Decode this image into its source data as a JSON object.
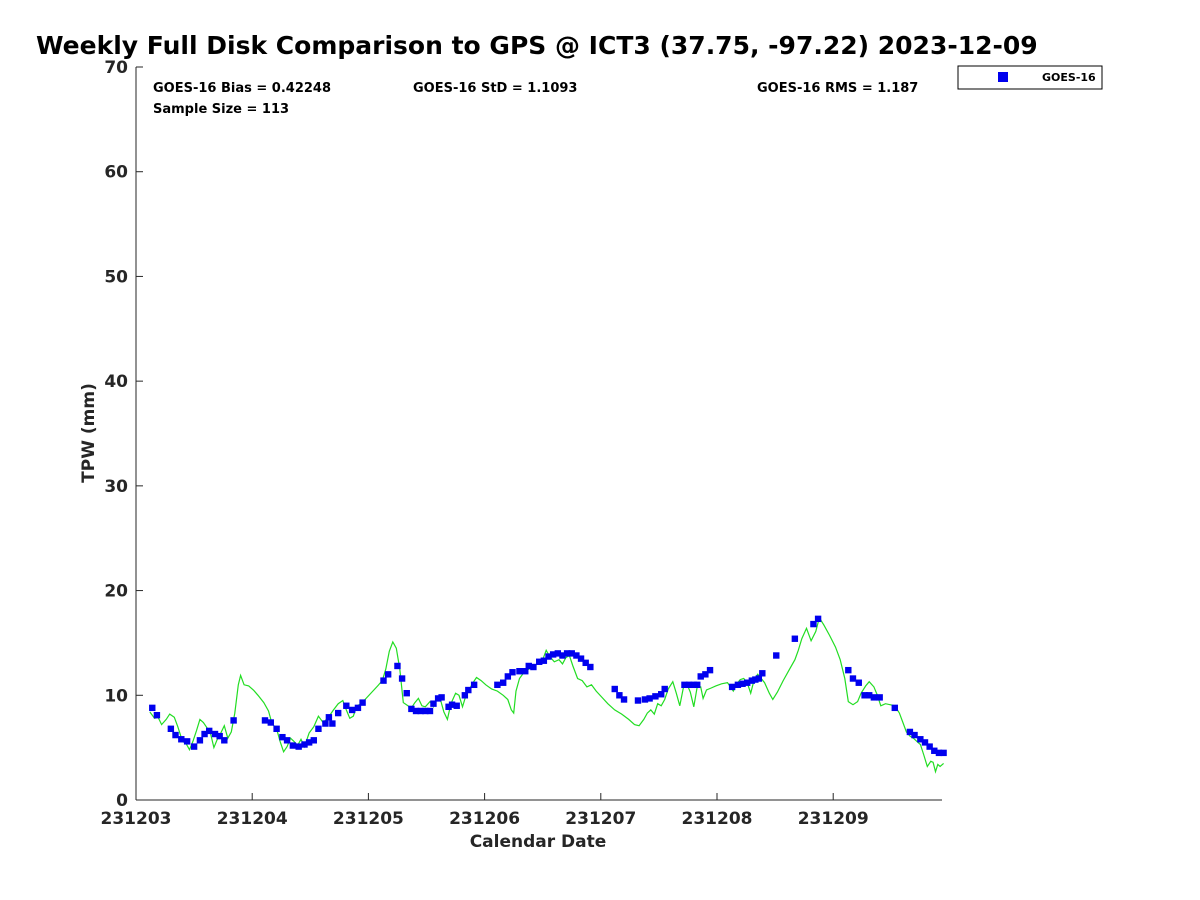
{
  "chart_data": {
    "type": "scatter",
    "title": "Weekly Full Disk Comparison to GPS @ ICT3 (37.75, -97.22) 2023-12-09",
    "xlabel": "Calendar Date",
    "ylabel": "TPW (mm)",
    "x_ticks": [
      "231203",
      "231204",
      "231205",
      "231206",
      "231207",
      "231208",
      "231209"
    ],
    "xlim": [
      0,
      6.95
    ],
    "ylim": [
      0,
      70
    ],
    "y_ticks": [
      0,
      10,
      20,
      30,
      40,
      50,
      60,
      70
    ],
    "grid": false,
    "legend_position": "top-right outside",
    "stats": {
      "bias": "GOES-16 Bias = 0.42248",
      "std": "GOES-16 StD = 1.1093",
      "rms": "GOES-16 RMS = 1.187",
      "sample": "Sample Size = 113"
    },
    "series": [
      {
        "name": "GOES-16",
        "kind": "markers",
        "color": "#0000ee",
        "points": [
          [
            0.14,
            8.8
          ],
          [
            0.18,
            8.1
          ],
          [
            0.3,
            6.8
          ],
          [
            0.34,
            6.2
          ],
          [
            0.39,
            5.8
          ],
          [
            0.44,
            5.6
          ],
          [
            0.5,
            5.1
          ],
          [
            0.55,
            5.7
          ],
          [
            0.59,
            6.3
          ],
          [
            0.63,
            6.6
          ],
          [
            0.68,
            6.3
          ],
          [
            0.72,
            6.1
          ],
          [
            0.76,
            5.7
          ],
          [
            0.84,
            7.6
          ],
          [
            1.11,
            7.6
          ],
          [
            1.16,
            7.4
          ],
          [
            1.21,
            6.8
          ],
          [
            1.26,
            6.0
          ],
          [
            1.3,
            5.7
          ],
          [
            1.35,
            5.2
          ],
          [
            1.4,
            5.1
          ],
          [
            1.45,
            5.3
          ],
          [
            1.49,
            5.5
          ],
          [
            1.53,
            5.7
          ],
          [
            1.57,
            6.8
          ],
          [
            1.63,
            7.3
          ],
          [
            1.66,
            7.9
          ],
          [
            1.69,
            7.3
          ],
          [
            1.74,
            8.3
          ],
          [
            1.81,
            9.0
          ],
          [
            1.86,
            8.6
          ],
          [
            1.91,
            8.8
          ],
          [
            1.95,
            9.3
          ],
          [
            2.13,
            11.4
          ],
          [
            2.17,
            12.0
          ],
          [
            2.25,
            12.8
          ],
          [
            2.29,
            11.6
          ],
          [
            2.33,
            10.2
          ],
          [
            2.37,
            8.7
          ],
          [
            2.41,
            8.5
          ],
          [
            2.45,
            8.5
          ],
          [
            2.49,
            8.5
          ],
          [
            2.53,
            8.5
          ],
          [
            2.56,
            9.2
          ],
          [
            2.6,
            9.7
          ],
          [
            2.63,
            9.8
          ],
          [
            2.69,
            8.9
          ],
          [
            2.72,
            9.1
          ],
          [
            2.76,
            9.0
          ],
          [
            2.83,
            10.0
          ],
          [
            2.86,
            10.5
          ],
          [
            2.91,
            11.0
          ],
          [
            3.11,
            11.0
          ],
          [
            3.16,
            11.2
          ],
          [
            3.2,
            11.8
          ],
          [
            3.24,
            12.2
          ],
          [
            3.3,
            12.3
          ],
          [
            3.35,
            12.3
          ],
          [
            3.38,
            12.8
          ],
          [
            3.42,
            12.7
          ],
          [
            3.47,
            13.2
          ],
          [
            3.51,
            13.3
          ],
          [
            3.55,
            13.7
          ],
          [
            3.59,
            13.9
          ],
          [
            3.63,
            14.0
          ],
          [
            3.67,
            13.8
          ],
          [
            3.71,
            14.0
          ],
          [
            3.75,
            14.0
          ],
          [
            3.79,
            13.8
          ],
          [
            3.83,
            13.5
          ],
          [
            3.87,
            13.1
          ],
          [
            3.91,
            12.7
          ],
          [
            4.12,
            10.6
          ],
          [
            4.16,
            10.0
          ],
          [
            4.2,
            9.6
          ],
          [
            4.32,
            9.5
          ],
          [
            4.38,
            9.6
          ],
          [
            4.42,
            9.7
          ],
          [
            4.47,
            9.9
          ],
          [
            4.52,
            10.1
          ],
          [
            4.55,
            10.6
          ],
          [
            4.72,
            11.0
          ],
          [
            4.76,
            11.0
          ],
          [
            4.8,
            11.0
          ],
          [
            4.83,
            11.0
          ],
          [
            4.86,
            11.8
          ],
          [
            4.9,
            12.0
          ],
          [
            4.94,
            12.4
          ],
          [
            5.13,
            10.8
          ],
          [
            5.18,
            11.0
          ],
          [
            5.22,
            11.1
          ],
          [
            5.26,
            11.2
          ],
          [
            5.3,
            11.4
          ],
          [
            5.33,
            11.5
          ],
          [
            5.36,
            11.6
          ],
          [
            5.39,
            12.1
          ],
          [
            5.51,
            13.8
          ],
          [
            5.67,
            15.4
          ],
          [
            5.83,
            16.8
          ],
          [
            5.87,
            17.3
          ],
          [
            6.13,
            12.4
          ],
          [
            6.17,
            11.6
          ],
          [
            6.22,
            11.2
          ],
          [
            6.27,
            10.0
          ],
          [
            6.31,
            10.0
          ],
          [
            6.35,
            9.8
          ],
          [
            6.4,
            9.8
          ],
          [
            6.53,
            8.8
          ],
          [
            6.66,
            6.5
          ],
          [
            6.7,
            6.2
          ],
          [
            6.75,
            5.8
          ],
          [
            6.79,
            5.5
          ],
          [
            6.83,
            5.1
          ],
          [
            6.87,
            4.7
          ],
          [
            6.91,
            4.5
          ],
          [
            6.95,
            4.5
          ]
        ]
      },
      {
        "kind": "line",
        "color": "#22dd22",
        "points": [
          [
            0.12,
            8.4
          ],
          [
            0.16,
            7.8
          ],
          [
            0.19,
            7.9
          ],
          [
            0.22,
            7.2
          ],
          [
            0.26,
            7.7
          ],
          [
            0.29,
            8.2
          ],
          [
            0.33,
            7.9
          ],
          [
            0.36,
            7.0
          ],
          [
            0.4,
            5.6
          ],
          [
            0.43,
            5.4
          ],
          [
            0.46,
            4.8
          ],
          [
            0.49,
            5.6
          ],
          [
            0.52,
            6.6
          ],
          [
            0.55,
            7.7
          ],
          [
            0.58,
            7.4
          ],
          [
            0.61,
            6.9
          ],
          [
            0.64,
            6.4
          ],
          [
            0.67,
            5.0
          ],
          [
            0.7,
            5.8
          ],
          [
            0.73,
            6.4
          ],
          [
            0.76,
            7.1
          ],
          [
            0.79,
            5.9
          ],
          [
            0.82,
            6.5
          ],
          [
            0.85,
            8.3
          ],
          [
            0.88,
            11.0
          ],
          [
            0.9,
            11.9
          ],
          [
            0.93,
            11.0
          ],
          [
            0.97,
            10.9
          ],
          [
            1.01,
            10.5
          ],
          [
            1.05,
            10.0
          ],
          [
            1.1,
            9.3
          ],
          [
            1.14,
            8.5
          ],
          [
            1.17,
            7.3
          ],
          [
            1.21,
            6.8
          ],
          [
            1.24,
            5.6
          ],
          [
            1.27,
            4.6
          ],
          [
            1.3,
            5.1
          ],
          [
            1.33,
            5.9
          ],
          [
            1.36,
            5.6
          ],
          [
            1.39,
            5.2
          ],
          [
            1.42,
            5.8
          ],
          [
            1.45,
            5.1
          ],
          [
            1.49,
            6.4
          ],
          [
            1.53,
            7.0
          ],
          [
            1.57,
            8.0
          ],
          [
            1.61,
            7.4
          ],
          [
            1.65,
            7.8
          ],
          [
            1.7,
            8.6
          ],
          [
            1.74,
            9.2
          ],
          [
            1.78,
            9.5
          ],
          [
            1.81,
            8.6
          ],
          [
            1.84,
            7.8
          ],
          [
            1.87,
            8.0
          ],
          [
            1.9,
            9.0
          ],
          [
            1.94,
            9.2
          ],
          [
            1.98,
            9.7
          ],
          [
            2.03,
            10.3
          ],
          [
            2.08,
            10.9
          ],
          [
            2.12,
            11.4
          ],
          [
            2.15,
            12.5
          ],
          [
            2.18,
            14.2
          ],
          [
            2.21,
            15.1
          ],
          [
            2.24,
            14.5
          ],
          [
            2.27,
            12.5
          ],
          [
            2.3,
            9.3
          ],
          [
            2.34,
            9.0
          ],
          [
            2.37,
            8.8
          ],
          [
            2.4,
            9.3
          ],
          [
            2.43,
            9.7
          ],
          [
            2.46,
            9.0
          ],
          [
            2.49,
            8.9
          ],
          [
            2.53,
            9.4
          ],
          [
            2.56,
            8.9
          ],
          [
            2.59,
            9.7
          ],
          [
            2.62,
            9.6
          ],
          [
            2.65,
            8.4
          ],
          [
            2.68,
            7.7
          ],
          [
            2.71,
            9.2
          ],
          [
            2.75,
            10.2
          ],
          [
            2.78,
            10.0
          ],
          [
            2.81,
            8.9
          ],
          [
            2.84,
            10.0
          ],
          [
            2.87,
            10.6
          ],
          [
            2.9,
            11.2
          ],
          [
            2.93,
            11.7
          ],
          [
            2.97,
            11.4
          ],
          [
            3.01,
            11.0
          ],
          [
            3.06,
            10.6
          ],
          [
            3.11,
            10.4
          ],
          [
            3.16,
            10.0
          ],
          [
            3.2,
            9.6
          ],
          [
            3.23,
            8.6
          ],
          [
            3.25,
            8.3
          ],
          [
            3.27,
            10.4
          ],
          [
            3.3,
            11.6
          ],
          [
            3.34,
            12.2
          ],
          [
            3.38,
            12.5
          ],
          [
            3.42,
            12.8
          ],
          [
            3.46,
            13.0
          ],
          [
            3.5,
            13.4
          ],
          [
            3.53,
            14.3
          ],
          [
            3.56,
            13.7
          ],
          [
            3.6,
            13.2
          ],
          [
            3.64,
            13.4
          ],
          [
            3.67,
            13.0
          ],
          [
            3.7,
            13.6
          ],
          [
            3.73,
            13.8
          ],
          [
            3.76,
            12.8
          ],
          [
            3.8,
            11.6
          ],
          [
            3.84,
            11.4
          ],
          [
            3.88,
            10.8
          ],
          [
            3.92,
            11.0
          ],
          [
            3.96,
            10.4
          ],
          [
            4.01,
            9.8
          ],
          [
            4.06,
            9.2
          ],
          [
            4.12,
            8.6
          ],
          [
            4.18,
            8.2
          ],
          [
            4.24,
            7.7
          ],
          [
            4.29,
            7.2
          ],
          [
            4.33,
            7.1
          ],
          [
            4.37,
            7.7
          ],
          [
            4.4,
            8.3
          ],
          [
            4.43,
            8.6
          ],
          [
            4.46,
            8.2
          ],
          [
            4.49,
            9.2
          ],
          [
            4.52,
            9.0
          ],
          [
            4.55,
            9.6
          ],
          [
            4.58,
            10.6
          ],
          [
            4.62,
            11.3
          ],
          [
            4.65,
            10.2
          ],
          [
            4.68,
            9.0
          ],
          [
            4.71,
            10.7
          ],
          [
            4.74,
            11.1
          ],
          [
            4.77,
            10.3
          ],
          [
            4.8,
            8.9
          ],
          [
            4.83,
            10.8
          ],
          [
            4.86,
            10.8
          ],
          [
            4.88,
            9.7
          ],
          [
            4.91,
            10.5
          ],
          [
            4.95,
            10.7
          ],
          [
            4.99,
            10.9
          ],
          [
            5.04,
            11.1
          ],
          [
            5.09,
            11.2
          ],
          [
            5.14,
            10.4
          ],
          [
            5.17,
            11.1
          ],
          [
            5.2,
            11.5
          ],
          [
            5.23,
            11.6
          ],
          [
            5.26,
            11.2
          ],
          [
            5.29,
            10.2
          ],
          [
            5.32,
            11.5
          ],
          [
            5.35,
            12.0
          ],
          [
            5.38,
            11.6
          ],
          [
            5.41,
            11.2
          ],
          [
            5.45,
            10.2
          ],
          [
            5.48,
            9.6
          ],
          [
            5.52,
            10.3
          ],
          [
            5.57,
            11.4
          ],
          [
            5.62,
            12.4
          ],
          [
            5.67,
            13.4
          ],
          [
            5.7,
            14.3
          ],
          [
            5.73,
            15.4
          ],
          [
            5.77,
            16.4
          ],
          [
            5.81,
            15.2
          ],
          [
            5.85,
            16.1
          ],
          [
            5.88,
            17.4
          ],
          [
            5.92,
            16.7
          ],
          [
            5.97,
            15.7
          ],
          [
            6.02,
            14.6
          ],
          [
            6.06,
            13.4
          ],
          [
            6.1,
            11.6
          ],
          [
            6.13,
            9.4
          ],
          [
            6.17,
            9.1
          ],
          [
            6.21,
            9.4
          ],
          [
            6.24,
            10.2
          ],
          [
            6.28,
            10.9
          ],
          [
            6.31,
            11.3
          ],
          [
            6.35,
            10.8
          ],
          [
            6.38,
            10.0
          ],
          [
            6.41,
            9.0
          ],
          [
            6.45,
            9.2
          ],
          [
            6.49,
            9.1
          ],
          [
            6.53,
            9.0
          ],
          [
            6.57,
            8.3
          ],
          [
            6.6,
            7.4
          ],
          [
            6.63,
            6.5
          ],
          [
            6.66,
            6.1
          ],
          [
            6.69,
            5.9
          ],
          [
            6.72,
            5.6
          ],
          [
            6.75,
            5.3
          ],
          [
            6.78,
            4.3
          ],
          [
            6.81,
            3.2
          ],
          [
            6.84,
            3.7
          ],
          [
            6.86,
            3.6
          ],
          [
            6.88,
            2.7
          ],
          [
            6.9,
            3.4
          ],
          [
            6.92,
            3.2
          ],
          [
            6.95,
            3.5
          ]
        ]
      }
    ]
  }
}
